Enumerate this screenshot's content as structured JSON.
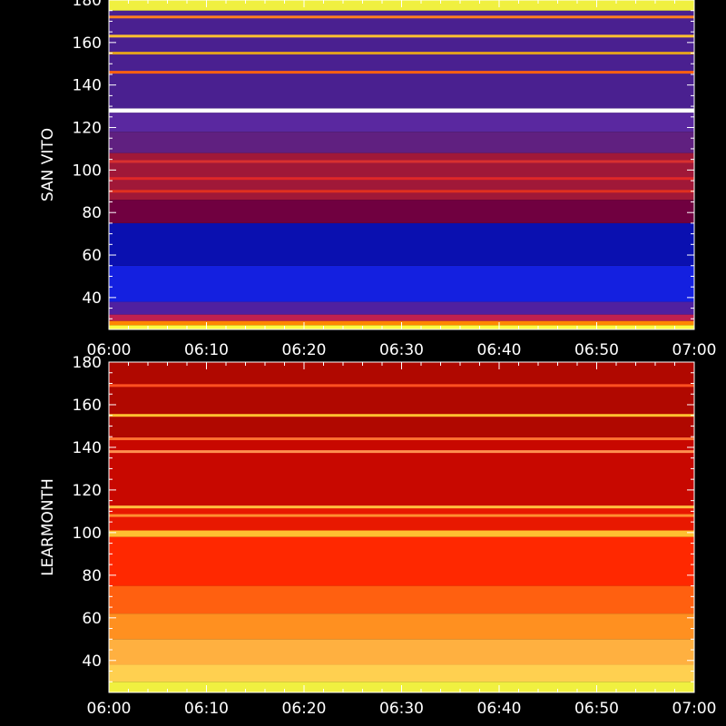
{
  "chart_data": [
    {
      "type": "heatmap",
      "ylabel": "SAN VITO",
      "xlim": [
        "06:00",
        "07:00"
      ],
      "ylim": [
        25,
        180
      ],
      "x_ticks": [
        "06:00",
        "06:10",
        "06:20",
        "06:30",
        "06:40",
        "06:50",
        "07:00"
      ],
      "y_ticks": [
        40,
        60,
        80,
        100,
        120,
        140,
        160,
        180
      ],
      "bands": [
        {
          "from": 25,
          "to": 27,
          "color": "#ffff40"
        },
        {
          "from": 27,
          "to": 29,
          "color": "#ff8800"
        },
        {
          "from": 29,
          "to": 32,
          "color": "#c02050"
        },
        {
          "from": 32,
          "to": 38,
          "color": "#5020a0"
        },
        {
          "from": 38,
          "to": 55,
          "color": "#1420e0"
        },
        {
          "from": 55,
          "to": 75,
          "color": "#0a10b0"
        },
        {
          "from": 75,
          "to": 86,
          "color": "#700040"
        },
        {
          "from": 86,
          "to": 108,
          "color": "#a01838"
        },
        {
          "from": 108,
          "to": 118,
          "color": "#602080"
        },
        {
          "from": 118,
          "to": 127,
          "color": "#5a28a0"
        },
        {
          "from": 127,
          "to": 129,
          "color": "#ffffff"
        },
        {
          "from": 129,
          "to": 175,
          "color": "#4a2090"
        },
        {
          "from": 175,
          "to": 180,
          "color": "#f0f040"
        }
      ],
      "lines": [
        {
          "at": 90,
          "color": "#e03020"
        },
        {
          "at": 96,
          "color": "#e02828"
        },
        {
          "at": 104,
          "color": "#d83030"
        },
        {
          "at": 146,
          "color": "#ff6010"
        },
        {
          "at": 155,
          "color": "#e0a020"
        },
        {
          "at": 163,
          "color": "#ffc030"
        },
        {
          "at": 172,
          "color": "#ff8020"
        }
      ]
    },
    {
      "type": "heatmap",
      "ylabel": "LEARMONTH",
      "xlim": [
        "06:00",
        "07:00"
      ],
      "ylim": [
        25,
        180
      ],
      "x_ticks": [
        "06:00",
        "06:10",
        "06:20",
        "06:30",
        "06:40",
        "06:50",
        "07:00"
      ],
      "y_ticks": [
        40,
        60,
        80,
        100,
        120,
        140,
        160,
        180
      ],
      "bands": [
        {
          "from": 25,
          "to": 30,
          "color": "#f0f040"
        },
        {
          "from": 30,
          "to": 38,
          "color": "#ffd050"
        },
        {
          "from": 38,
          "to": 50,
          "color": "#ffb040"
        },
        {
          "from": 50,
          "to": 62,
          "color": "#ff9020"
        },
        {
          "from": 62,
          "to": 75,
          "color": "#ff6010"
        },
        {
          "from": 75,
          "to": 98,
          "color": "#ff2800"
        },
        {
          "from": 98,
          "to": 101,
          "color": "#ffc030"
        },
        {
          "from": 101,
          "to": 113,
          "color": "#e81800"
        },
        {
          "from": 113,
          "to": 145,
          "color": "#c80800"
        },
        {
          "from": 145,
          "to": 180,
          "color": "#b00800"
        }
      ],
      "lines": [
        {
          "at": 108,
          "color": "#ff9030"
        },
        {
          "at": 112,
          "color": "#ffc040"
        },
        {
          "at": 138,
          "color": "#ff9050"
        },
        {
          "at": 144,
          "color": "#ff7030"
        },
        {
          "at": 155,
          "color": "#ffc030"
        },
        {
          "at": 169,
          "color": "#ff5020"
        }
      ]
    }
  ]
}
